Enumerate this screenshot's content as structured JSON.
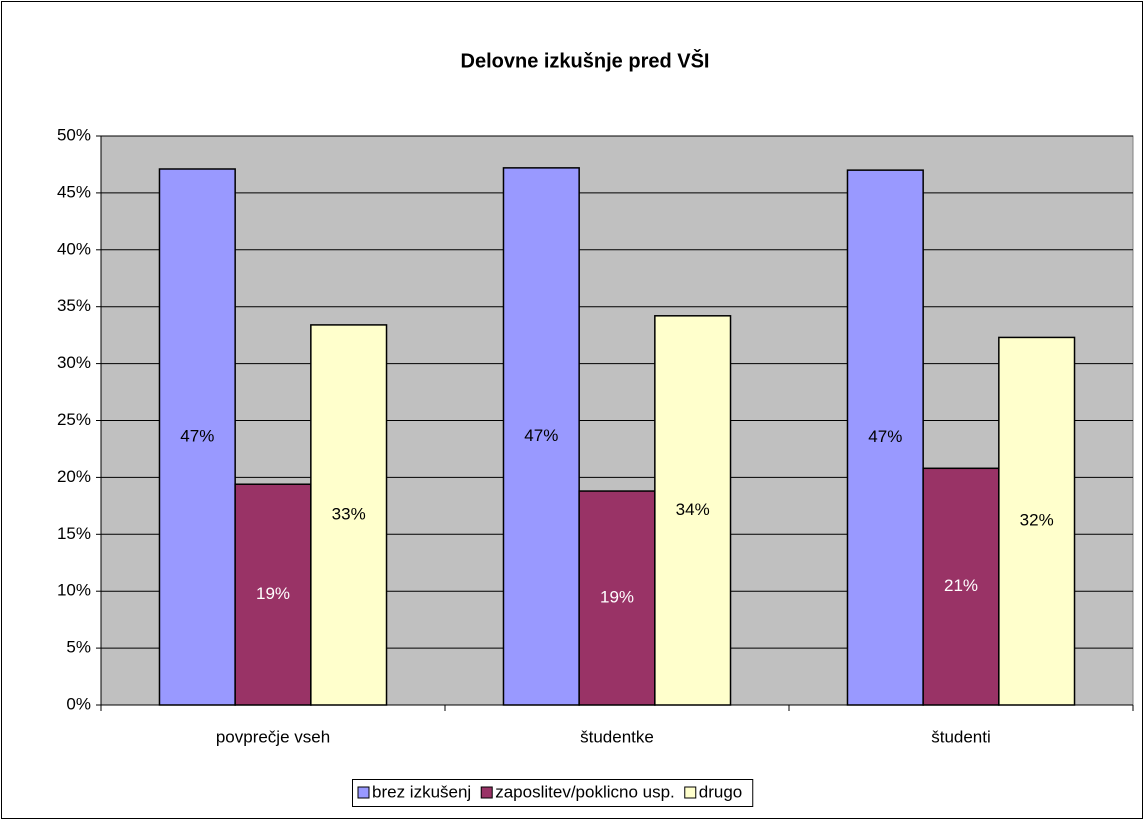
{
  "chart_data": {
    "type": "bar",
    "title": "Delovne izkušnje pred VŠI",
    "categories": [
      "povprečje vseh",
      "študentke",
      "študenti"
    ],
    "series": [
      {
        "name": "brez izkušenj",
        "color": "#9999ff",
        "values": [
          47.1,
          47.2,
          47.0
        ],
        "value_labels": [
          "47%",
          "47%",
          "47%"
        ]
      },
      {
        "name": "zaposlitev/poklicno usp.",
        "color": "#993366",
        "values": [
          19.4,
          18.8,
          20.8
        ],
        "value_labels": [
          "19%",
          "19%",
          "21%"
        ]
      },
      {
        "name": "drugo",
        "color": "#ffffcc",
        "values": [
          33.4,
          34.2,
          32.3
        ],
        "value_labels": [
          "33%",
          "34%",
          "32%"
        ]
      }
    ],
    "ylim": [
      0,
      50
    ],
    "yticks": [
      {
        "value": 0,
        "label": "0%"
      },
      {
        "value": 5,
        "label": "5%"
      },
      {
        "value": 10,
        "label": "10%"
      },
      {
        "value": 15,
        "label": "15%"
      },
      {
        "value": 20,
        "label": "20%"
      },
      {
        "value": 25,
        "label": "25%"
      },
      {
        "value": 30,
        "label": "30%"
      },
      {
        "value": 35,
        "label": "35%"
      },
      {
        "value": 40,
        "label": "40%"
      },
      {
        "value": 45,
        "label": "45%"
      },
      {
        "value": 50,
        "label": "50%"
      }
    ],
    "grid": true,
    "plot_background": "#c0c0c0",
    "legend": "bottom"
  }
}
